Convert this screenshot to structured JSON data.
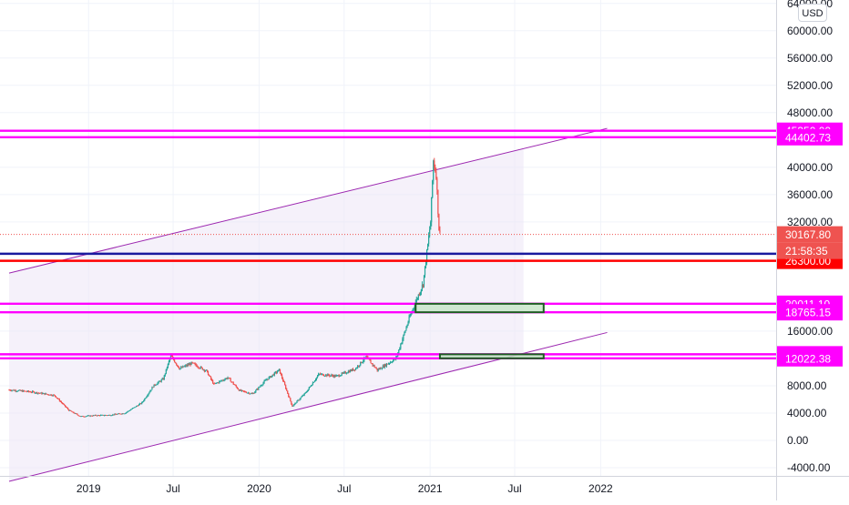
{
  "currency_button": "USD",
  "chart_data": {
    "type": "candlestick",
    "title": "",
    "ylim": [
      -5200,
      64500
    ],
    "price_axis_ticks": [
      "64000.00",
      "60000.00",
      "56000.00",
      "52000.00",
      "48000.00",
      "40000.00",
      "36000.00",
      "32000.00",
      "16000.00",
      "8000.00",
      "4000.00",
      "0.00",
      "-4000.00"
    ],
    "time_axis_ticks": [
      {
        "label": "2019",
        "date": "2019-01-01"
      },
      {
        "label": "Jul",
        "date": "2019-07-01"
      },
      {
        "label": "2020",
        "date": "2020-01-01"
      },
      {
        "label": "Jul",
        "date": "2020-07-01"
      },
      {
        "label": "2021",
        "date": "2021-01-01"
      },
      {
        "label": "Jul",
        "date": "2021-07-01"
      },
      {
        "label": "2022",
        "date": "2022-01-01"
      }
    ],
    "price_series": {
      "name": "",
      "points": [
        [
          "2018-07-15",
          7400
        ],
        [
          "2018-09-01",
          7100
        ],
        [
          "2018-10-20",
          6600
        ],
        [
          "2018-11-20",
          4400
        ],
        [
          "2018-12-15",
          3500
        ],
        [
          "2019-01-15",
          3650
        ],
        [
          "2019-02-15",
          3700
        ],
        [
          "2019-03-20",
          4000
        ],
        [
          "2019-04-25",
          5500
        ],
        [
          "2019-05-20",
          8000
        ],
        [
          "2019-06-10",
          9000
        ],
        [
          "2019-06-26",
          12400
        ],
        [
          "2019-07-15",
          10500
        ],
        [
          "2019-08-10",
          11300
        ],
        [
          "2019-09-10",
          10200
        ],
        [
          "2019-09-26",
          8200
        ],
        [
          "2019-10-26",
          9200
        ],
        [
          "2019-11-20",
          7300
        ],
        [
          "2019-12-18",
          6800
        ],
        [
          "2020-01-15",
          8800
        ],
        [
          "2020-02-13",
          10300
        ],
        [
          "2020-03-12",
          5000
        ],
        [
          "2020-04-10",
          7000
        ],
        [
          "2020-05-08",
          9700
        ],
        [
          "2020-06-15",
          9400
        ],
        [
          "2020-07-25",
          10500
        ],
        [
          "2020-08-17",
          12200
        ],
        [
          "2020-09-10",
          10300
        ],
        [
          "2020-10-20",
          12000
        ],
        [
          "2020-11-18",
          18000
        ],
        [
          "2020-12-17",
          23000
        ],
        [
          "2021-01-02",
          32000
        ],
        [
          "2021-01-08",
          41000
        ],
        [
          "2021-01-14",
          39000
        ],
        [
          "2021-01-20",
          31000
        ],
        [
          "2021-01-22",
          30168
        ]
      ]
    },
    "channel": {
      "upper": [
        [
          "2018-07-15",
          24500
        ],
        [
          "2022-01-15",
          45700
        ]
      ],
      "lower": [
        [
          "2018-07-15",
          -6000
        ],
        [
          "2022-01-15",
          15800
        ]
      ],
      "shade_end": "2021-07-20"
    },
    "horizontal_levels": [
      {
        "price": 45350,
        "color": "#ff00ff",
        "label": "45350.00"
      },
      {
        "price": 44402.73,
        "color": "#ff00ff",
        "label": "44402.73"
      },
      {
        "price": 27333.0,
        "color": "#1a1a9e",
        "label": "27333.00"
      },
      {
        "price": 26300.0,
        "color": "#ff0000",
        "label": "26300.00"
      },
      {
        "price": 20011.1,
        "color": "#ff00ff",
        "label": "20011.10"
      },
      {
        "price": 18765.15,
        "color": "#ff00ff",
        "label": "18765.15"
      },
      {
        "price": 12608.71,
        "color": "#ff00ff",
        "label": "12608.71"
      },
      {
        "price": 12022.38,
        "color": "#ff00ff",
        "label": "12022.38"
      }
    ],
    "zones": [
      {
        "start": "2020-12-01",
        "end": "2021-09-01",
        "top": 20011.1,
        "bottom": 18765.15
      },
      {
        "start": "2021-01-22",
        "end": "2021-09-01",
        "top": 12608.71,
        "bottom": 12022.38
      }
    ],
    "last_price": {
      "value": 30167.8,
      "label": "30167.80",
      "countdown": "21:58:35"
    },
    "colors": {
      "up": "#26a69a",
      "down": "#ef5350",
      "channel": "#9c27b0",
      "zone_fill": "#c8e6c9",
      "zone_border": "#1b5e20"
    }
  }
}
